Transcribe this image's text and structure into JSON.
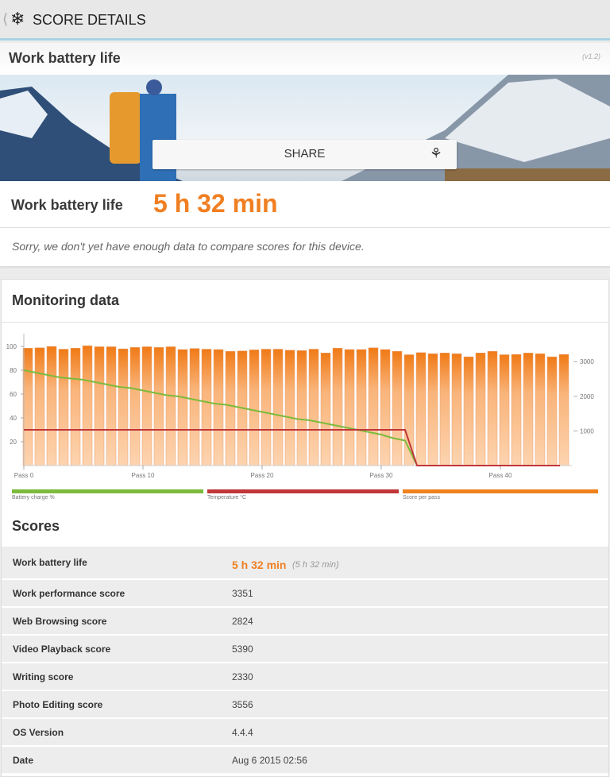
{
  "header": {
    "back_icon": "chevron-left-icon",
    "logo_icon": "snowflake-icon",
    "title": "SCORE DETAILS"
  },
  "titlebar": {
    "title": "Work battery life",
    "version": "(v1.2)"
  },
  "banner": {
    "share_label": "SHARE",
    "share_icon": "share-icon"
  },
  "result": {
    "label": "Work battery life",
    "value": "5 h 32 min"
  },
  "notice": "Sorry, we don't yet have enough data to compare scores for this device.",
  "monitoring": {
    "title": "Monitoring data"
  },
  "chart_data": {
    "type": "bar+line",
    "x_tick_labels": [
      "Pass 0",
      "Pass 10",
      "Pass 20",
      "Pass 30",
      "Pass 40"
    ],
    "x_ticks": [
      0,
      10,
      20,
      30,
      40
    ],
    "passes": [
      0,
      1,
      2,
      3,
      4,
      5,
      6,
      7,
      8,
      9,
      10,
      11,
      12,
      13,
      14,
      15,
      16,
      17,
      18,
      19,
      20,
      21,
      22,
      23,
      24,
      25,
      26,
      27,
      28,
      29,
      30,
      31,
      32,
      33,
      34,
      35,
      36,
      37,
      38,
      39,
      40,
      41,
      42,
      43,
      44,
      45
    ],
    "left_axis": {
      "ticks": [
        "20",
        "40",
        "60",
        "80",
        "100"
      ],
      "range": [
        0,
        110
      ]
    },
    "right_axis": {
      "ticks": [
        "1000",
        "2000",
        "3000"
      ],
      "range": [
        0,
        3600
      ]
    },
    "series": [
      {
        "name": "Score per pass",
        "axis": "right",
        "kind": "bar",
        "color": "#f0821e",
        "values": [
          3390,
          3400,
          3440,
          3360,
          3390,
          3460,
          3430,
          3430,
          3370,
          3410,
          3430,
          3410,
          3430,
          3350,
          3380,
          3360,
          3350,
          3300,
          3310,
          3340,
          3360,
          3360,
          3330,
          3320,
          3360,
          3250,
          3390,
          3350,
          3350,
          3400,
          3350,
          3300,
          3200,
          3260,
          3230,
          3250,
          3230,
          3140,
          3250,
          3300,
          3200,
          3210,
          3250,
          3230,
          3140,
          3210
        ]
      },
      {
        "name": "Battery charge %",
        "axis": "left",
        "kind": "line",
        "color": "#7cbb3c",
        "values": [
          80,
          78,
          76,
          74,
          73,
          72,
          70,
          68,
          66,
          65,
          63,
          61,
          59,
          58,
          56,
          54,
          52,
          51,
          49,
          47,
          45,
          43,
          41,
          39,
          38,
          36,
          34,
          32,
          30,
          28,
          26,
          23,
          21,
          0
        ]
      },
      {
        "name": "Temperature °C",
        "axis": "left",
        "kind": "line",
        "color": "#c0373a",
        "values": [
          30,
          30,
          30,
          30,
          30,
          30,
          30,
          30,
          30,
          30,
          30,
          30,
          30,
          30,
          30,
          30,
          30,
          30,
          30,
          30,
          30,
          30,
          30,
          30,
          30,
          30,
          30,
          30,
          30,
          30,
          30,
          30,
          30,
          0,
          0,
          0,
          0,
          0,
          0,
          0,
          0,
          0,
          0,
          0,
          0,
          0
        ]
      }
    ],
    "legend": [
      "Battery charge %",
      "Temperature °C",
      "Score per pass"
    ],
    "legend_placement": "bottom"
  },
  "scores": {
    "title": "Scores",
    "rows": [
      {
        "label": "Work battery life",
        "value": "5 h 32 min",
        "secondary": "(5 h 32 min)"
      },
      {
        "label": "Work performance score",
        "value": "3351"
      },
      {
        "label": "Web Browsing score",
        "value": "2824"
      },
      {
        "label": "Video Playback score",
        "value": "5390"
      },
      {
        "label": "Writing score",
        "value": "2330"
      },
      {
        "label": "Photo Editing score",
        "value": "3556"
      },
      {
        "label": "OS Version",
        "value": "4.4.4"
      },
      {
        "label": "Date",
        "value": "Aug 6 2015 02:56"
      }
    ]
  }
}
